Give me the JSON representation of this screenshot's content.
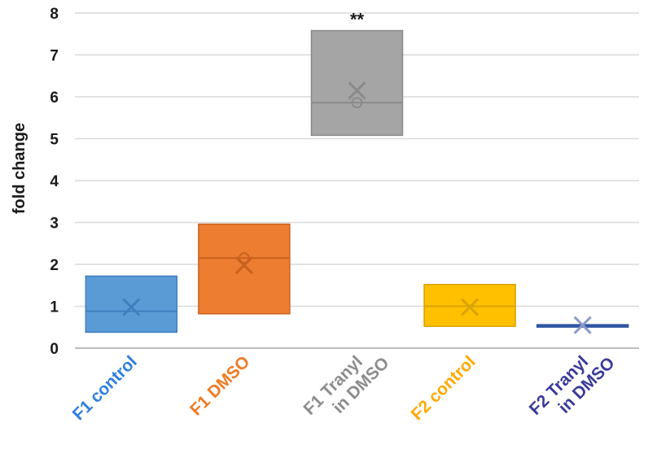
{
  "chart_data": {
    "type": "box",
    "ylabel": "fold change",
    "ylim": [
      0,
      8
    ],
    "yticks": [
      0,
      1,
      2,
      3,
      4,
      5,
      6,
      7,
      8
    ],
    "grid": true,
    "categories": [
      {
        "label_lines": [
          "F1 control"
        ],
        "q1": 0.38,
        "q3": 1.72,
        "median": 0.88,
        "mean": 0.98,
        "color": "#5b9bd5",
        "edge": "#3f7fbf",
        "label_color": "#2f7fe0"
      },
      {
        "label_lines": [
          "F1 DMSO"
        ],
        "q1": 0.82,
        "q3": 2.96,
        "median": 2.15,
        "mean": 1.98,
        "color": "#ed7d31",
        "edge": "#c8621e",
        "label_color": "#f07a22"
      },
      {
        "label_lines": [
          "F1 Tranyl",
          "in DMSO"
        ],
        "q1": 5.08,
        "q3": 7.58,
        "median": 5.86,
        "mean": 6.15,
        "color": "#a5a5a5",
        "edge": "#8a8a8a",
        "label_color": "#8c8c8c"
      },
      {
        "label_lines": [
          "F2 control"
        ],
        "q1": 0.52,
        "q3": 1.52,
        "median": 1.0,
        "mean": 0.98,
        "color": "#ffc000",
        "edge": "#d9a300",
        "label_color": "#ffa800"
      },
      {
        "label_lines": [
          "F2 Tranyl",
          "in DMSO"
        ],
        "q1": 0.52,
        "q3": 0.56,
        "median": 0.54,
        "mean": 0.55,
        "color": "#4472c4",
        "edge": "#2f55a0",
        "label_color": "#3a3a9a"
      }
    ],
    "annotations": [
      {
        "category_index": 2,
        "text": "**"
      }
    ]
  }
}
